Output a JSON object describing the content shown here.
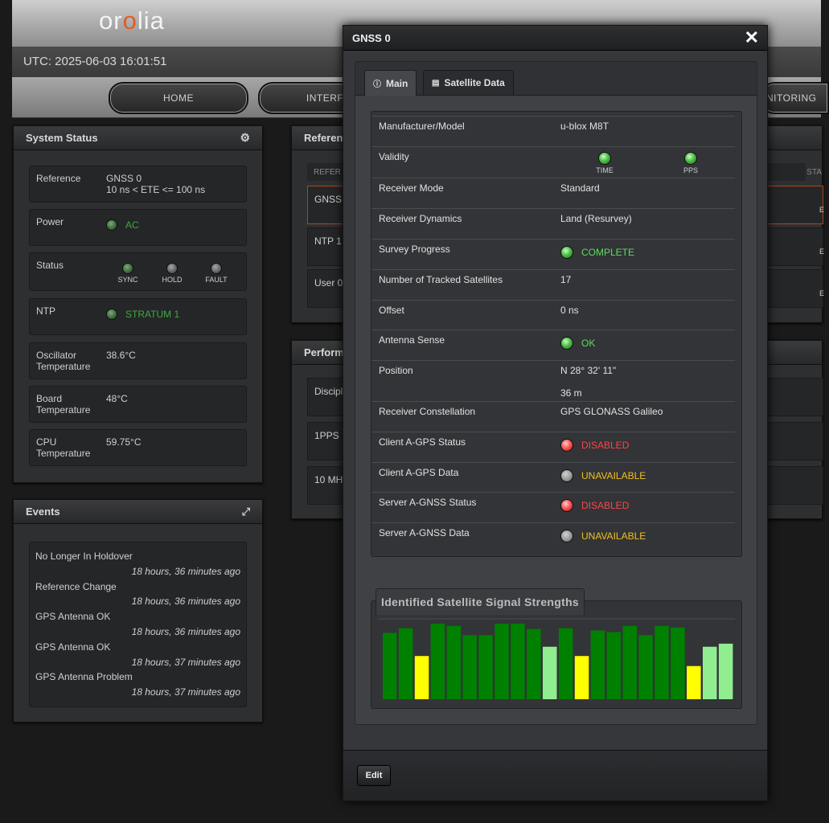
{
  "brand": {
    "logo_pre": "or",
    "logo_accent": "o",
    "logo_post": "lia"
  },
  "utc": "UTC: 2025-06-03 16:01:51",
  "nav": [
    {
      "label": "HOME"
    },
    {
      "label": "INTERFA"
    },
    {
      "label": "NITORING"
    }
  ],
  "system_status": {
    "title": "System Status",
    "rows": [
      {
        "label": "Reference",
        "value_line1": "GNSS 0",
        "value_line2": "10 ns < ETE <= 100 ns"
      },
      {
        "label": "Power",
        "value": "AC"
      },
      {
        "label": "Status",
        "indicators": [
          "SYNC",
          "HOLD",
          "FAULT"
        ]
      },
      {
        "label": "NTP",
        "value": "STRATUM 1"
      },
      {
        "label_line1": "Oscillator",
        "label_line2": "Temperature",
        "value": "38.6°C"
      },
      {
        "label_line1": "Board",
        "label_line2": "Temperature",
        "value": "48°C"
      },
      {
        "label_line1": "CPU",
        "label_line2": "Temperature",
        "value": "59.75°C"
      }
    ]
  },
  "events": {
    "title": "Events",
    "items": [
      {
        "title": "No Longer In Holdover",
        "time": "18 hours, 36 minutes ago"
      },
      {
        "title": "Reference Change",
        "time": "18 hours, 36 minutes ago"
      },
      {
        "title": "GPS Antenna OK",
        "time": "18 hours, 36 minutes ago"
      },
      {
        "title": "GPS Antenna OK",
        "time": "18 hours, 37 minutes ago"
      },
      {
        "title": "GPS Antenna Problem",
        "time": "18 hours, 37 minutes ago"
      }
    ]
  },
  "reference_panel": {
    "title": "Referen",
    "col_left": "REFER",
    "col_right": "STA",
    "rows": [
      "GNSS",
      "NTP 1",
      "User 0"
    ],
    "right_suffix": "E"
  },
  "performance_panel": {
    "title": "Perform",
    "rows": [
      "Discipli",
      "1PPS F",
      "10 MHz"
    ]
  },
  "modal": {
    "title": "GNSS 0",
    "tabs": [
      {
        "label": "Main",
        "icon": "info-icon"
      },
      {
        "label": "Satellite Data",
        "icon": "chart-icon"
      }
    ],
    "rows": [
      {
        "label": "Manufacturer/Model",
        "value": "u-blox M8T"
      },
      {
        "label": "Validity",
        "indicators": [
          "TIME",
          "PPS"
        ]
      },
      {
        "label": "Receiver Mode",
        "value": "Standard"
      },
      {
        "label": "Receiver Dynamics",
        "value": "Land (Resurvey)"
      },
      {
        "label": "Survey Progress",
        "value": "COMPLETE",
        "status": "green"
      },
      {
        "label": "Number of Tracked Satellites",
        "value": "17"
      },
      {
        "label": "Offset",
        "value": "0 ns"
      },
      {
        "label": "Antenna Sense",
        "value": "OK",
        "status": "green"
      },
      {
        "label": "Position",
        "value": "N 28° 32' 11\"",
        "value2": "36 m"
      },
      {
        "label": "Receiver Constellation",
        "value": "GPS GLONASS Galileo"
      },
      {
        "label": "Client A-GPS Status",
        "value": "DISABLED",
        "status": "red"
      },
      {
        "label": "Client A-GPS Data",
        "value": "UNAVAILABLE",
        "status": "gray"
      },
      {
        "label": "Server A-GNSS Status",
        "value": "DISABLED",
        "status": "red"
      },
      {
        "label": "Server A-GNSS Data",
        "value": "UNAVAILABLE",
        "status": "gray"
      }
    ],
    "signal_title": "Identified Satellite Signal Strengths",
    "edit_label": "Edit"
  },
  "chart_data": {
    "type": "bar",
    "title": "Identified Satellite Signal Strengths",
    "xlabel": "",
    "ylabel": "",
    "ylim": [
      0,
      100
    ],
    "grid": false,
    "values": [
      86,
      92,
      56,
      98,
      95,
      83,
      83,
      98,
      98,
      91,
      68,
      92,
      56,
      89,
      87,
      95,
      83,
      95,
      93,
      43,
      68,
      72
    ],
    "colors": [
      "#008000",
      "#008000",
      "#ffff00",
      "#008000",
      "#008000",
      "#008000",
      "#008000",
      "#008000",
      "#008000",
      "#008000",
      "#90ee90",
      "#008000",
      "#ffff00",
      "#008000",
      "#008000",
      "#008000",
      "#008000",
      "#008000",
      "#008000",
      "#ffff00",
      "#90ee90",
      "#90ee90"
    ]
  }
}
